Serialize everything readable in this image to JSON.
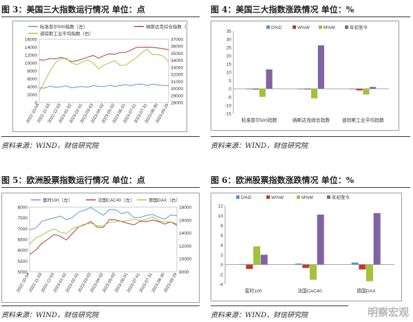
{
  "figures": [
    {
      "title": "图 3：美国三大指数运行情况  单位：点",
      "source": "资料来源：WIND，财信研究院",
      "chart_data": {
        "type": "line",
        "legend_position": "top",
        "x_ticks": [
          "2022-10-04",
          "2022-11-03",
          "2022-12-03",
          "2023-01-02",
          "2023-02-01",
          "2023-03-03",
          "2023-04-02",
          "2023-05-02",
          "2023-06-01",
          "2023-07-01",
          "2023-07-31",
          "2023-08-30",
          "2023-09-29"
        ],
        "y_left": {
          "range": [
            0,
            16000
          ],
          "ticks": [
            0,
            2000,
            4000,
            6000,
            8000,
            10000,
            12000,
            14000,
            16000
          ]
        },
        "y_right": {
          "range": [
            28000,
            37000
          ],
          "ticks": [
            28000,
            29000,
            30000,
            31000,
            32000,
            33000,
            34000,
            35000,
            36000,
            37000
          ]
        },
        "series": [
          {
            "name": "标准普尔500指数（左）",
            "color": "#5b8fd4",
            "axis": "left",
            "values": [
              3680,
              3800,
              3950,
              3980,
              3990,
              4030,
              3900,
              3850,
              3970,
              4080,
              4100,
              4130,
              4170,
              4150,
              4230,
              4290,
              4350,
              4410,
              4520,
              4580,
              4470,
              4450,
              4500,
              4380,
              4290
            ]
          },
          {
            "name": "纳斯达克综合指数（左）",
            "color": "#b0323a",
            "axis": "left",
            "values": [
              10800,
              10700,
              11000,
              11200,
              11300,
              11000,
              10500,
              10400,
              11100,
              11500,
              11700,
              11400,
              11800,
              12200,
              12400,
              12500,
              12700,
              13400,
              13700,
              14100,
              14000,
              13800,
              14000,
              13500,
              13300
            ]
          },
          {
            "name": "道琼斯工业平均指数（右）",
            "color": "#a1c23a",
            "axis": "right",
            "values": [
              29500,
              30900,
              32500,
              33700,
              34100,
              34400,
              33600,
              33300,
              33900,
              34000,
              33600,
              32900,
              33200,
              33700,
              34000,
              33200,
              33400,
              33800,
              34300,
              35200,
              35500,
              34800,
              34900,
              34500,
              33800
            ]
          }
        ]
      }
    },
    {
      "title": "图 4：美国三大指数涨跌情况  单位：%",
      "source": "资料来源：WIND，财信研究院",
      "chart_data": {
        "type": "bar",
        "legend_position": "top",
        "categories": [
          "标准普尔500指数",
          "纳斯达克综合指数",
          "道琼斯工业平均指数"
        ],
        "ylim": [
          -15,
          35
        ],
        "y_ticks": [
          -15,
          -10,
          -5,
          0,
          5,
          10,
          15,
          20,
          25,
          30,
          35
        ],
        "series": [
          {
            "name": "D%D",
            "color": "#5b8fd4",
            "values": [
              -0.1,
              -0.1,
              -0.1
            ]
          },
          {
            "name": "W%W",
            "color": "#c0392b",
            "values": [
              -0.5,
              -0.4,
              -1.0
            ]
          },
          {
            "name": "M%M",
            "color": "#a1c23a",
            "values": [
              -4.9,
              -5.8,
              -3.5
            ]
          },
          {
            "name": "年初至今",
            "color": "#8064a2",
            "values": [
              11.7,
              26.3,
              1.1
            ]
          }
        ]
      }
    },
    {
      "title": "图 5：欧洲股票指数运行情况  单位：点",
      "source": "资料来源：WIND，财信研究院",
      "chart_data": {
        "type": "line",
        "legend_position": "top",
        "x_ticks": [
          "2022-10-04",
          "2022-11-03",
          "2022-12-03",
          "2023-01-02",
          "2023-02-01",
          "2023-03-03",
          "2023-04-02",
          "2023-05-02",
          "2023-06-01",
          "2023-07-01",
          "2023-07-31",
          "2023-08-30",
          "2023-09-29"
        ],
        "y_left": {
          "range": [
            5000,
            8000
          ],
          "ticks": [
            5000,
            5500,
            6000,
            6500,
            7000,
            7500,
            8000
          ]
        },
        "y_right": {
          "range": [
            8000,
            18000
          ],
          "ticks": [
            8000,
            10000,
            12000,
            14000,
            16000,
            18000
          ]
        },
        "series": [
          {
            "name": "富时100（左）",
            "color": "#5b8fd4",
            "axis": "left",
            "values": [
              6950,
              7050,
              7300,
              7450,
              7500,
              7550,
              7450,
              7500,
              7750,
              7900,
              7950,
              7800,
              7650,
              7850,
              7900,
              7700,
              7750,
              7550,
              7500,
              7600,
              7700,
              7500,
              7450,
              7650,
              7600
            ]
          },
          {
            "name": "法国CAC40（左）",
            "color": "#b0323a",
            "axis": "left",
            "values": [
              5800,
              6000,
              6300,
              6550,
              6700,
              6650,
              6500,
              6750,
              7100,
              7200,
              7300,
              7100,
              7050,
              7400,
              7450,
              7300,
              7250,
              7200,
              7300,
              7350,
              7400,
              7300,
              7250,
              7300,
              7150
            ]
          },
          {
            "name": "德国DAX（右）",
            "color": "#a1c23a",
            "axis": "right",
            "values": [
              12300,
              13100,
              13700,
              14300,
              14500,
              14200,
              13900,
              14600,
              15100,
              15300,
              15500,
              15200,
              15000,
              15700,
              15800,
              15700,
              16000,
              16100,
              15800,
              16200,
              16400,
              15900,
              15800,
              15600,
              15400
            ]
          }
        ]
      }
    },
    {
      "title": "图 6：欧洲股票指数涨跌情况  单位：%",
      "source": "资料来源：WIND，财信研究院",
      "chart_data": {
        "type": "bar",
        "legend_position": "top",
        "categories": [
          "富时100",
          "法国CAC40",
          "德国DAX"
        ],
        "ylim": [
          -4,
          12
        ],
        "y_ticks": [
          -4,
          -2,
          0,
          2,
          4,
          6,
          8,
          10,
          12
        ],
        "series": [
          {
            "name": "D%D",
            "color": "#5b8fd4",
            "values": [
              0.1,
              0.2,
              0.4
            ]
          },
          {
            "name": "W%W",
            "color": "#c0392b",
            "values": [
              -0.9,
              -0.7,
              -1.0
            ]
          },
          {
            "name": "M%M",
            "color": "#a1c23a",
            "values": [
              3.7,
              -3.1,
              -3.4
            ]
          },
          {
            "name": "年初至今",
            "color": "#8064a2",
            "values": [
              2.0,
              10.2,
              10.5
            ]
          }
        ]
      }
    }
  ],
  "watermark": "明察宏观"
}
